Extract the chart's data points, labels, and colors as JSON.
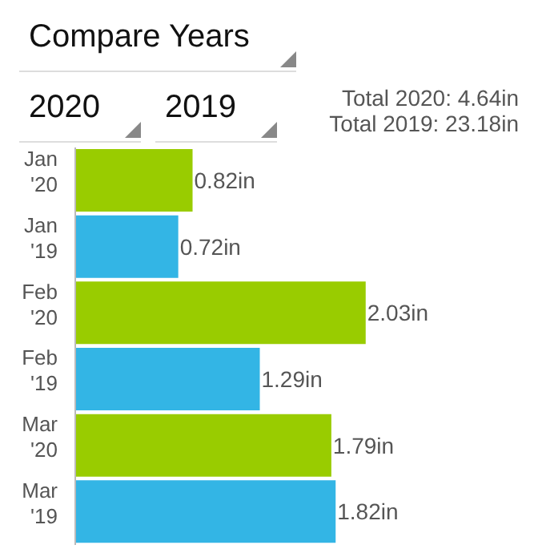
{
  "chart_data": {
    "type": "bar",
    "orientation": "horizontal",
    "title": "Compare Years",
    "annotations": [
      "2020",
      "2019",
      "Total 2020: 4.64in",
      "Total 2019: 23.18in"
    ],
    "categories": [
      "Jan '20",
      "Jan '19",
      "Feb '20",
      "Feb '19",
      "Mar '20",
      "Mar '19"
    ],
    "values": [
      0.82,
      0.72,
      2.03,
      1.29,
      1.79,
      1.82
    ],
    "colors": [
      "#99cc00",
      "#33b5e5",
      "#99cc00",
      "#33b5e5",
      "#99cc00",
      "#33b5e5"
    ],
    "value_labels": [
      "0.82in",
      "0.72in",
      "2.03in",
      "1.29in",
      "1.79in",
      "1.82in"
    ],
    "grid": false,
    "legend": false
  }
}
